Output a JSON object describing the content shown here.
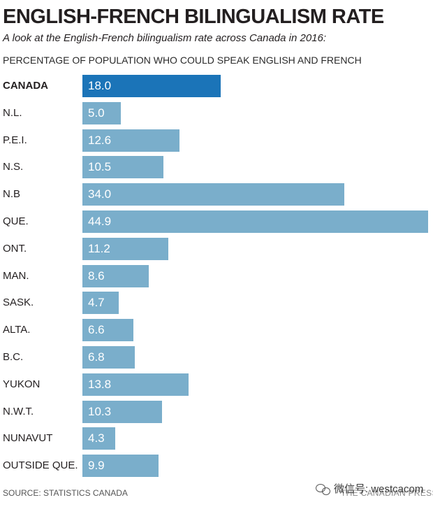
{
  "title": "ENGLISH-FRENCH BILINGUALISM RATE",
  "subtitle": "A look at the English-French bilingualism rate across Canada in 2016:",
  "source": "SOURCE: STATISTICS CANADA",
  "credit": "THE CANADIAN PRESS",
  "watermark": {
    "icon": "wechat-icon",
    "text": "微信号: westcacom"
  },
  "colors": {
    "highlight_bar": "#1b74b8",
    "bar": "#7aaecb"
  },
  "chart_data": {
    "type": "bar",
    "orientation": "horizontal",
    "title": "ENGLISH-FRENCH BILINGUALISM RATE",
    "subtitle": "A look at the English-French bilingualism rate across Canada in 2016:",
    "ylabel": "PERCENTAGE OF POPULATION WHO COULD SPEAK ENGLISH AND FRENCH",
    "xlabel": "",
    "xlim": [
      0,
      44.9
    ],
    "grid": false,
    "legend": "none",
    "highlight_category": "CANADA",
    "categories": [
      "CANADA",
      "N.L.",
      "P.E.I.",
      "N.S.",
      "N.B",
      "QUE.",
      "ONT.",
      "MAN.",
      "SASK.",
      "ALTA.",
      "B.C.",
      "YUKON",
      "N.W.T.",
      "NUNAVUT",
      "OUTSIDE QUE."
    ],
    "values": [
      18.0,
      5.0,
      12.6,
      10.5,
      34.0,
      44.9,
      11.2,
      8.6,
      4.7,
      6.6,
      6.8,
      13.8,
      10.3,
      4.3,
      9.9
    ],
    "value_labels": [
      "18.0",
      "5.0",
      "12.6",
      "10.5",
      "34.0",
      "44.9",
      "11.2",
      "8.6",
      "4.7",
      "6.6",
      "6.8",
      "13.8",
      "10.3",
      "4.3",
      "9.9"
    ]
  }
}
